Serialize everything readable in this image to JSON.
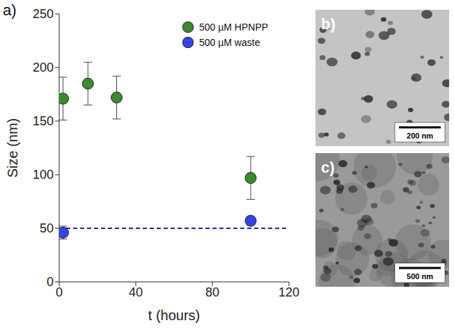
{
  "chart_data": {
    "type": "scatter",
    "panel": "a)",
    "x_label": "t (hours)",
    "y_label": "Size (nm)",
    "xlim": [
      0,
      120
    ],
    "xticks": [
      0,
      40,
      80,
      120
    ],
    "ylim": [
      0,
      250
    ],
    "yticks": [
      0,
      50,
      100,
      150,
      200,
      250
    ],
    "legend": "upper right",
    "marker": "circle",
    "series": [
      {
        "name": "500 µM HPNPP",
        "color": "#3a8a2e",
        "x": [
          2,
          15,
          30,
          100
        ],
        "values": [
          171,
          185,
          172,
          97
        ],
        "error": [
          20,
          20,
          20,
          20
        ]
      },
      {
        "name": "500 µM waste",
        "color": "#3344ee",
        "x": [
          2,
          100
        ],
        "values": [
          46,
          57
        ],
        "error": [
          6,
          4
        ]
      }
    ],
    "reference_lines": [
      {
        "y": 50,
        "color": "#1f2d8a",
        "line_style": "dashed"
      }
    ]
  },
  "images": [
    {
      "label": "b)",
      "scale_bar": "200 nm"
    },
    {
      "label": "c)",
      "scale_bar": "500 nm"
    }
  ]
}
